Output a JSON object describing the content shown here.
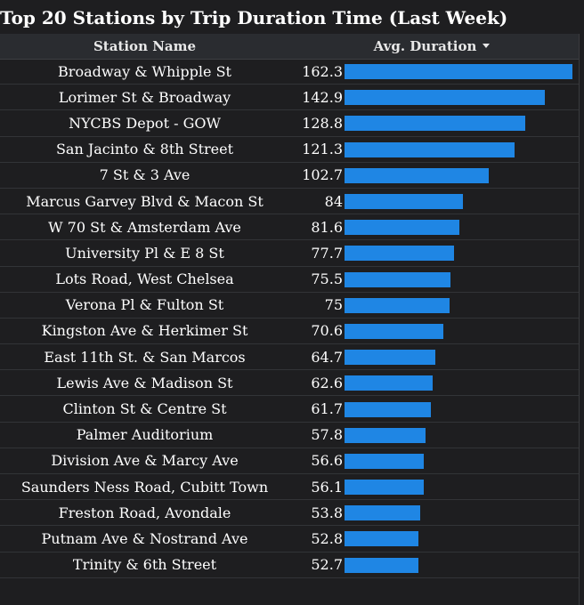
{
  "chart_data": {
    "type": "table",
    "title": "Top 20 Stations by Trip Duration Time (Last Week)",
    "columns": [
      "Station Name",
      "Avg. Duration"
    ],
    "sort_column": "Avg. Duration",
    "sort_direction": "descending",
    "bar_color": "#1f86e4",
    "categories": [
      "Broadway & Whipple St",
      "Lorimer St & Broadway",
      "NYCBS Depot - GOW",
      "San Jacinto & 8th Street",
      "7 St & 3 Ave",
      "Marcus Garvey Blvd & Macon St",
      "W 70 St & Amsterdam Ave",
      "University Pl & E 8 St",
      "Lots Road, West Chelsea",
      "Verona Pl & Fulton St",
      "Kingston Ave & Herkimer St",
      "East 11th St. & San Marcos",
      "Lewis Ave & Madison St",
      "Clinton St & Centre St",
      "Palmer Auditorium",
      "Division Ave & Marcy Ave",
      "Saunders Ness Road, Cubitt Town",
      "Freston Road, Avondale",
      "Putnam Ave & Nostrand Ave",
      "Trinity & 6th Street"
    ],
    "values": [
      162.3,
      142.9,
      128.8,
      121.3,
      102.7,
      84,
      81.6,
      77.7,
      75.5,
      75,
      70.6,
      64.7,
      62.6,
      61.7,
      57.8,
      56.6,
      56.1,
      53.8,
      52.8,
      52.7
    ],
    "value_labels": [
      "162.3",
      "142.9",
      "128.8",
      "121.3",
      "102.7",
      "84",
      "81.6",
      "77.7",
      "75.5",
      "75",
      "70.6",
      "64.7",
      "62.6",
      "61.7",
      "57.8",
      "56.6",
      "56.1",
      "53.8",
      "52.8",
      "52.7"
    ]
  }
}
